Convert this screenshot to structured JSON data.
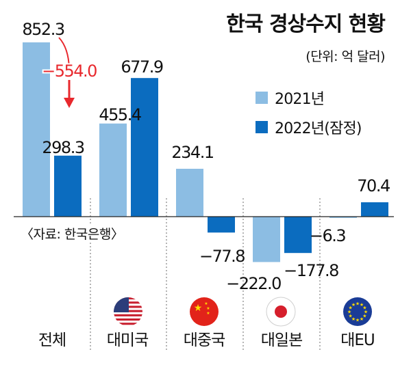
{
  "chart_data": {
    "type": "bar",
    "title": "한국 경상수지 현황",
    "unit": "(단위: 억 달러)",
    "source": "〈자료: 한국은행〉",
    "categories": [
      "전체",
      "대미국",
      "대중국",
      "대일본",
      "대EU"
    ],
    "flags": [
      "",
      "us-flag-icon",
      "china-flag-icon",
      "japan-flag-icon",
      "eu-flag-icon"
    ],
    "series": [
      {
        "name": "2021년",
        "color": "#8cbde3",
        "values": [
          852.3,
          455.4,
          234.1,
          -222.0,
          -6.3
        ]
      },
      {
        "name": "2022년(잠정)",
        "color": "#0b6cbf",
        "values": [
          298.3,
          677.9,
          -77.8,
          -177.8,
          70.4
        ]
      }
    ],
    "value_labels": [
      [
        "852.3",
        "455.4",
        "234.1",
        "−222.0",
        "−6.3"
      ],
      [
        "298.3",
        "677.9",
        "−77.8",
        "−177.8",
        "70.4"
      ]
    ],
    "annotation": {
      "text": "−554.0",
      "color": "#e8282d"
    },
    "legend_position": "top-right",
    "grid": false
  }
}
